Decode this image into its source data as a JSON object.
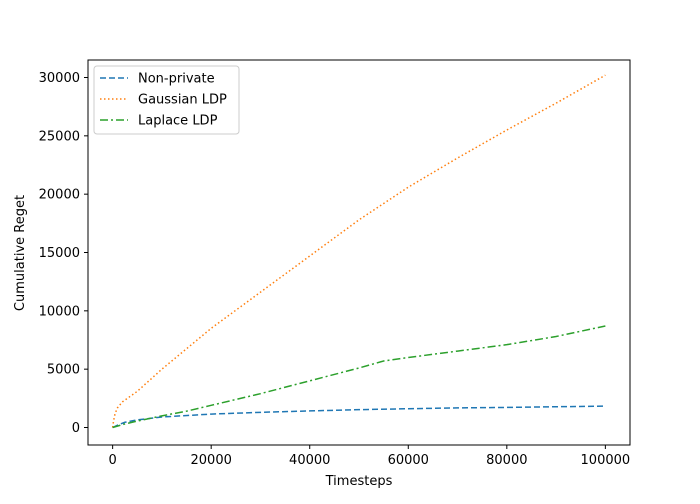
{
  "chart_data": {
    "type": "line",
    "title": "",
    "xlabel": "Timesteps",
    "ylabel": "Cumulative Reget",
    "xlim": [
      -5000,
      105000
    ],
    "ylim": [
      -1500,
      31500
    ],
    "xticks": [
      0,
      20000,
      40000,
      60000,
      80000,
      100000
    ],
    "yticks": [
      0,
      5000,
      10000,
      15000,
      20000,
      25000,
      30000
    ],
    "grid": false,
    "legend_position": "top-left",
    "series": [
      {
        "name": "Non-private",
        "color": "#1f77b4",
        "dash": "dashed",
        "x": [
          0,
          1000,
          2500,
          5000,
          10000,
          20000,
          30000,
          40000,
          50000,
          60000,
          70000,
          80000,
          90000,
          100000
        ],
        "values": [
          0,
          200,
          450,
          650,
          900,
          1150,
          1300,
          1420,
          1530,
          1610,
          1680,
          1720,
          1780,
          1830
        ]
      },
      {
        "name": "Gaussian LDP",
        "color": "#ff7f0e",
        "dash": "dotted",
        "x": [
          0,
          200,
          500,
          1000,
          2000,
          5000,
          10000,
          20000,
          30000,
          40000,
          50000,
          60000,
          70000,
          80000,
          90000,
          100000
        ],
        "values": [
          0,
          600,
          1200,
          1700,
          2200,
          3100,
          5000,
          8500,
          11600,
          14700,
          17800,
          20600,
          23100,
          25500,
          27800,
          30200
        ]
      },
      {
        "name": "Laplace LDP",
        "color": "#2ca02c",
        "dash": "dashdot",
        "x": [
          0,
          2000,
          5000,
          10000,
          15000,
          20000,
          30000,
          40000,
          50000,
          55000,
          60000,
          70000,
          80000,
          90000,
          100000
        ],
        "values": [
          0,
          250,
          550,
          1000,
          1400,
          1900,
          2900,
          4000,
          5100,
          5700,
          6000,
          6550,
          7100,
          7800,
          8700
        ]
      }
    ]
  }
}
